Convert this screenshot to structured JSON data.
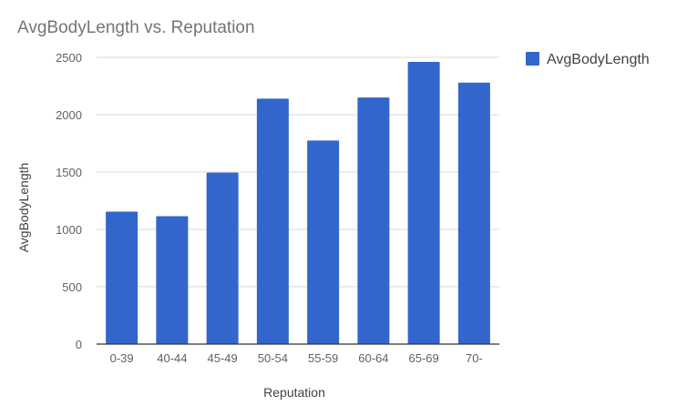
{
  "chart_data": {
    "type": "bar",
    "title": "AvgBodyLength vs. Reputation",
    "xlabel": "Reputation",
    "ylabel": "AvgBodyLength",
    "categories": [
      "0-39",
      "40-44",
      "45-49",
      "50-54",
      "55-59",
      "60-64",
      "65-69",
      "70-"
    ],
    "series": [
      {
        "name": "AvgBodyLength",
        "values": [
          1155,
          1115,
          1495,
          2140,
          1775,
          2150,
          2460,
          2280
        ]
      }
    ],
    "ylim": [
      0,
      2500
    ],
    "yticks": [
      0,
      500,
      1000,
      1500,
      2000,
      2500
    ],
    "grid": true,
    "legend": "right",
    "colors": {
      "bar": "#3366cc"
    }
  }
}
